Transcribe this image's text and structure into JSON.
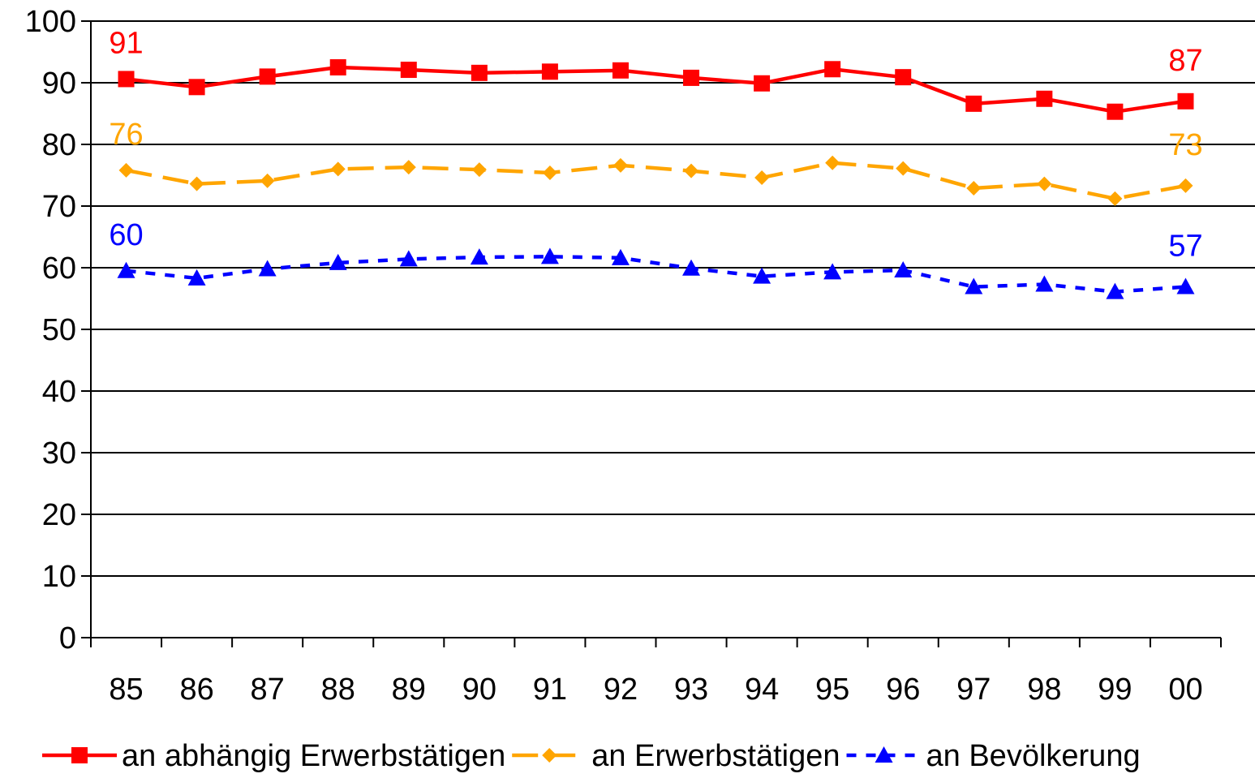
{
  "chart_data": {
    "type": "line",
    "categories": [
      "85",
      "86",
      "87",
      "88",
      "89",
      "90",
      "91",
      "92",
      "93",
      "94",
      "95",
      "96",
      "97",
      "98",
      "99",
      "00"
    ],
    "ylim": [
      0,
      100
    ],
    "yticks": [
      "0",
      "10",
      "20",
      "30",
      "40",
      "50",
      "60",
      "70",
      "80",
      "90",
      "100"
    ],
    "grid": true,
    "legend_position": "bottom",
    "series": [
      {
        "name": "an abhängig Erwerbstätigen",
        "color": "#ff0000",
        "marker": "square",
        "line_style": "solid",
        "values": [
          90.6,
          89.3,
          91.0,
          92.5,
          92.1,
          91.6,
          91.8,
          92.0,
          90.8,
          89.9,
          92.2,
          90.9,
          86.6,
          87.4,
          85.3,
          87.0
        ],
        "start_label": "91",
        "end_label": "87"
      },
      {
        "name": "an Erwerbstätigen",
        "color": "#ffa500",
        "marker": "diamond",
        "line_style": "dashed",
        "values": [
          75.8,
          73.6,
          74.1,
          76.0,
          76.3,
          75.9,
          75.4,
          76.6,
          75.7,
          74.6,
          77.0,
          76.1,
          72.9,
          73.6,
          71.2,
          73.3
        ],
        "start_label": "76",
        "end_label": "73"
      },
      {
        "name": "an Bevölkerung",
        "color": "#0000ff",
        "marker": "triangle",
        "line_style": "dotted",
        "values": [
          59.5,
          58.3,
          59.8,
          60.8,
          61.4,
          61.7,
          61.8,
          61.6,
          59.9,
          58.6,
          59.3,
          59.6,
          56.9,
          57.3,
          56.1,
          56.9
        ],
        "start_label": "60",
        "end_label": "57"
      }
    ]
  }
}
